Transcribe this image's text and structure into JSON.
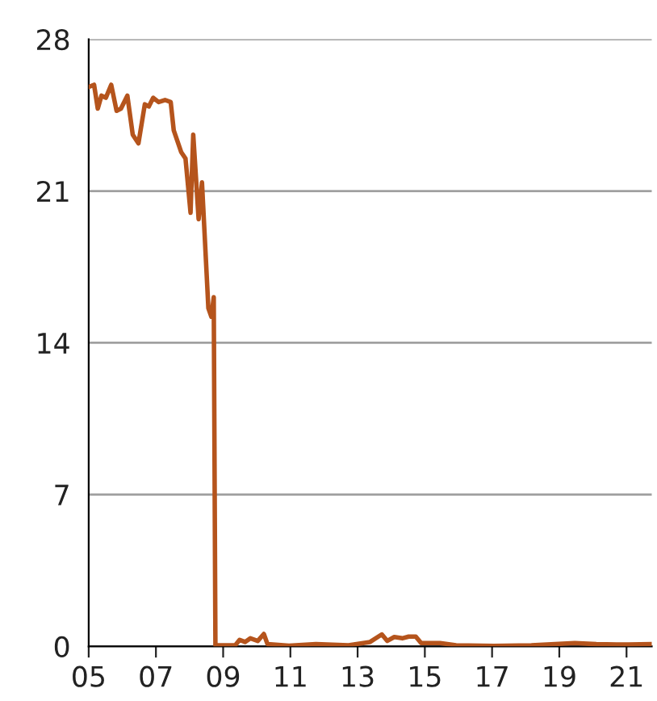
{
  "chart_data": {
    "type": "line",
    "color": "#b5541c",
    "x": [
      2005.0,
      2005.16,
      2005.27,
      2005.38,
      2005.51,
      2005.67,
      2005.83,
      2005.96,
      2006.15,
      2006.31,
      2006.48,
      2006.67,
      2006.79,
      2006.92,
      2007.08,
      2007.27,
      2007.44,
      2007.53,
      2007.75,
      2007.88,
      2008.03,
      2008.11,
      2008.27,
      2008.37,
      2008.56,
      2008.65,
      2008.72,
      2008.77,
      2008.8,
      2009.36,
      2009.49,
      2009.65,
      2009.81,
      2010.03,
      2010.21,
      2010.32,
      2010.96,
      2011.76,
      2012.73,
      2013.37,
      2013.72,
      2013.88,
      2014.09,
      2014.33,
      2014.52,
      2014.73,
      2014.89,
      2015.45,
      2015.93,
      2017.05,
      2018.17,
      2019.46,
      2020.1,
      2021.06,
      2021.7
    ],
    "values": [
      25.8,
      25.9,
      24.8,
      25.4,
      25.3,
      25.9,
      24.7,
      24.8,
      25.4,
      23.6,
      23.2,
      25.0,
      24.9,
      25.3,
      25.1,
      25.2,
      25.1,
      23.8,
      22.8,
      22.5,
      20.0,
      23.6,
      19.7,
      21.4,
      15.6,
      15.2,
      16.1,
      0.05,
      0.05,
      0.05,
      0.3,
      0.2,
      0.37,
      0.25,
      0.57,
      0.1,
      0.03,
      0.1,
      0.05,
      0.2,
      0.55,
      0.25,
      0.43,
      0.37,
      0.45,
      0.45,
      0.15,
      0.15,
      0.05,
      0.02,
      0.05,
      0.15,
      0.1,
      0.08,
      0.1
    ],
    "xlim": [
      2005,
      2021.75
    ],
    "xticks": [
      {
        "value": 2005,
        "label": "05"
      },
      {
        "value": 2007,
        "label": "07"
      },
      {
        "value": 2009,
        "label": "09"
      },
      {
        "value": 2011,
        "label": "11"
      },
      {
        "value": 2013,
        "label": "13"
      },
      {
        "value": 2015,
        "label": "15"
      },
      {
        "value": 2017,
        "label": "17"
      },
      {
        "value": 2019,
        "label": "19"
      },
      {
        "value": 2021,
        "label": "21"
      }
    ],
    "ylim": [
      0,
      28
    ],
    "yticks": [
      0,
      7,
      14,
      21,
      28
    ],
    "grid": "y",
    "line_style": "solid",
    "marker": "none"
  }
}
